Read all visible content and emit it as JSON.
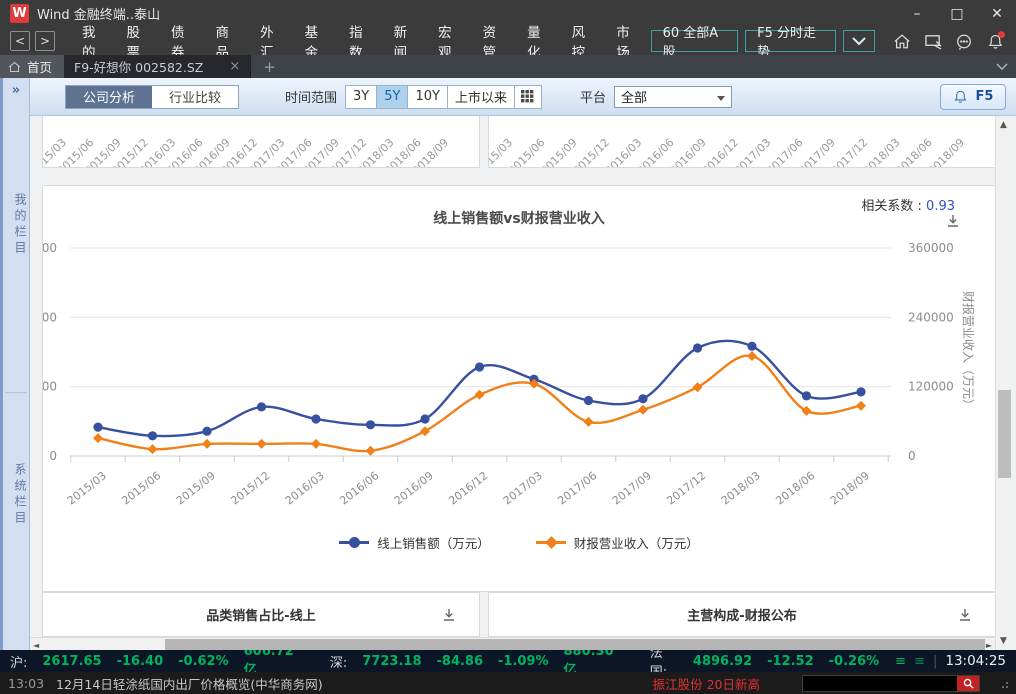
{
  "window": {
    "logo_text": "W",
    "title": "Wind 金融终端..泰山"
  },
  "menu_bar": {
    "back": "<",
    "forward": ">",
    "items": [
      "我的",
      "股票",
      "债券",
      "商品",
      "外汇",
      "基金",
      "指数",
      "新闻",
      "宏观",
      "资管",
      "量化",
      "风控",
      "市场"
    ],
    "quick_buttons": [
      "60 全部A股",
      "F5 分时走势"
    ]
  },
  "tab_bar": {
    "home": "首页",
    "active_tab": "F9-好想你 002582.SZ",
    "close_glyph": "×",
    "new_tab_glyph": "+"
  },
  "toolbar": {
    "view_tabs": [
      {
        "label": "公司分析",
        "active": true
      },
      {
        "label": "行业比较",
        "active": false
      }
    ],
    "time_range_label": "时间范围",
    "time_ranges": [
      {
        "label": "3Y",
        "active": false
      },
      {
        "label": "5Y",
        "active": true
      },
      {
        "label": "10Y",
        "active": false
      },
      {
        "label": "上市以来",
        "active": false
      }
    ],
    "platform_label": "平台",
    "platform_value": "全部",
    "f5_button": "F5"
  },
  "sidebar": {
    "expander": "»",
    "sections": [
      "我的栏目",
      "系统栏目"
    ]
  },
  "chart_data": {
    "type": "line",
    "title": "线上销售额vs财报营业收入",
    "correlation_label": "相关系数 :",
    "correlation_value": "0.93",
    "categories": [
      "2015/03",
      "2015/06",
      "2015/09",
      "2015/12",
      "2016/03",
      "2016/06",
      "2016/09",
      "2016/12",
      "2017/03",
      "2017/06",
      "2017/09",
      "2017/12",
      "2018/03",
      "2018/06",
      "2018/09"
    ],
    "series": [
      {
        "name": "线上销售额（万元）",
        "color": "#37519E",
        "marker": "circle",
        "axis": "left",
        "values": [
          50000,
          35000,
          43000,
          85000,
          64000,
          54000,
          64000,
          154000,
          133000,
          96000,
          99000,
          187000,
          190000,
          104000,
          111000
        ],
        "note": "left axis tick labels are clipped; values estimated against right-axis scale"
      },
      {
        "name": "财报营业收入（万元）",
        "color": "#F08019",
        "marker": "diamond",
        "axis": "right",
        "values": [
          31000,
          12000,
          21000,
          21000,
          21000,
          9000,
          43000,
          106000,
          125000,
          59000,
          80000,
          119000,
          173000,
          78000,
          87000
        ]
      }
    ],
    "right_axis": {
      "title": "财报营业收入（万元）",
      "ticks": [
        0,
        120000,
        240000,
        360000
      ],
      "max": 420000
    },
    "left_axis": {
      "visible_tick_fragments_top_down": [
        "00",
        "00",
        "00",
        "0"
      ],
      "note": "labels cut off at panel edge"
    },
    "legend_position": "bottom",
    "grid": "horizontal"
  },
  "bottom_panels": [
    {
      "title": "品类销售占比-线上"
    },
    {
      "title": "主营构成-财报公布"
    }
  ],
  "status_bar": {
    "markets": [
      {
        "label": "沪:",
        "value": "2617.65",
        "change": "-16.40",
        "pct": "-0.62%",
        "amount": "606.72亿"
      },
      {
        "label": "深:",
        "value": "7723.18",
        "change": "-84.86",
        "pct": "-1.09%",
        "amount": "880.30亿"
      },
      {
        "label": "法国:",
        "value": "4896.92",
        "change": "-12.52",
        "pct": "-0.26%",
        "amount": ""
      }
    ],
    "time": "13:04:25"
  },
  "ticker": {
    "time": "13:03",
    "news": "12月14日轻涂纸国内出厂价格概览(中华商务网)",
    "alert": "振江股份 20日新高"
  },
  "colors": {
    "accent_blue": "#37519E",
    "accent_orange": "#F08019",
    "status_green": "#00B35F",
    "alert_red": "#E23B3B",
    "teal_border": "#3F9FA6",
    "toolbar_active": "#5D7391"
  }
}
